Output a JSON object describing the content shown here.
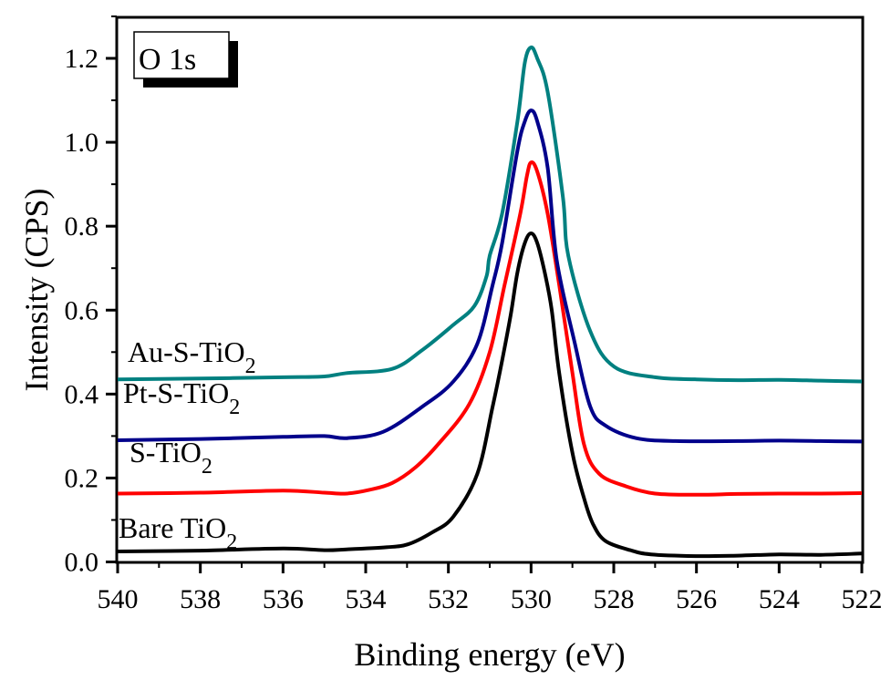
{
  "chart_data": {
    "type": "line",
    "title": "",
    "xlabel": "Binding energy (eV)",
    "ylabel": "Intensity (CPS)",
    "xlim": [
      540,
      522
    ],
    "x_reversed": true,
    "ylim": [
      0,
      1.3
    ],
    "x_ticks": [
      "540",
      "538",
      "536",
      "534",
      "532",
      "530",
      "528",
      "526",
      "524",
      "522"
    ],
    "x_tick_values": [
      540,
      538,
      536,
      534,
      532,
      530,
      528,
      526,
      524,
      522
    ],
    "y_ticks": [
      "0.0",
      "0.2",
      "0.4",
      "0.6",
      "0.8",
      "1.0",
      "1.2"
    ],
    "y_tick_values": [
      0,
      0.2,
      0.4,
      0.6,
      0.8,
      1.0,
      1.2
    ],
    "grid": false,
    "inset_label": "O 1s",
    "series": [
      {
        "name": "Bare TiO",
        "sub": "2",
        "color": "#000000",
        "points": [
          [
            540,
            0.025
          ],
          [
            538,
            0.027
          ],
          [
            536,
            0.032
          ],
          [
            535,
            0.028
          ],
          [
            534.46,
            0.03
          ],
          [
            533.5,
            0.035
          ],
          [
            532.98,
            0.042
          ],
          [
            532.4,
            0.07
          ],
          [
            531.88,
            0.108
          ],
          [
            531.3,
            0.21
          ],
          [
            530.93,
            0.37
          ],
          [
            530.7,
            0.48
          ],
          [
            530.49,
            0.59
          ],
          [
            530.33,
            0.69
          ],
          [
            530.15,
            0.76
          ],
          [
            530.0,
            0.783
          ],
          [
            529.85,
            0.76
          ],
          [
            529.67,
            0.69
          ],
          [
            529.5,
            0.6
          ],
          [
            529.32,
            0.45
          ],
          [
            529.0,
            0.26
          ],
          [
            528.72,
            0.152
          ],
          [
            528.5,
            0.09
          ],
          [
            528.2,
            0.05
          ],
          [
            527.6,
            0.028
          ],
          [
            527.1,
            0.018
          ],
          [
            526,
            0.014
          ],
          [
            525,
            0.015
          ],
          [
            524,
            0.018
          ],
          [
            523,
            0.017
          ],
          [
            522,
            0.02
          ]
        ]
      },
      {
        "name": "S-TiO",
        "sub": "2",
        "color": "#ff0000",
        "points": [
          [
            540,
            0.163
          ],
          [
            538,
            0.165
          ],
          [
            536,
            0.17
          ],
          [
            535,
            0.165
          ],
          [
            534.46,
            0.163
          ],
          [
            533.9,
            0.172
          ],
          [
            533.36,
            0.188
          ],
          [
            532.8,
            0.225
          ],
          [
            532.25,
            0.28
          ],
          [
            531.5,
            0.375
          ],
          [
            531.0,
            0.5
          ],
          [
            530.64,
            0.66
          ],
          [
            530.26,
            0.83
          ],
          [
            530.1,
            0.92
          ],
          [
            530.0,
            0.952
          ],
          [
            529.85,
            0.93
          ],
          [
            529.6,
            0.83
          ],
          [
            529.32,
            0.66
          ],
          [
            529.0,
            0.45
          ],
          [
            528.72,
            0.28
          ],
          [
            528.35,
            0.21
          ],
          [
            527.7,
            0.18
          ],
          [
            527.0,
            0.163
          ],
          [
            526,
            0.16
          ],
          [
            525,
            0.162
          ],
          [
            524,
            0.163
          ],
          [
            523,
            0.163
          ],
          [
            522,
            0.164
          ]
        ]
      },
      {
        "name": "Pt-S-TiO",
        "sub": "2",
        "color": "#00008b",
        "points": [
          [
            540,
            0.29
          ],
          [
            538,
            0.293
          ],
          [
            536,
            0.298
          ],
          [
            535,
            0.3
          ],
          [
            534.46,
            0.295
          ],
          [
            533.58,
            0.31
          ],
          [
            532.63,
            0.37
          ],
          [
            531.88,
            0.43
          ],
          [
            531.3,
            0.52
          ],
          [
            530.93,
            0.66
          ],
          [
            530.7,
            0.76
          ],
          [
            530.33,
            0.98
          ],
          [
            530.15,
            1.05
          ],
          [
            530.0,
            1.076
          ],
          [
            529.85,
            1.05
          ],
          [
            529.6,
            0.94
          ],
          [
            529.38,
            0.72
          ],
          [
            528.94,
            0.52
          ],
          [
            528.57,
            0.37
          ],
          [
            528.2,
            0.325
          ],
          [
            527.46,
            0.295
          ],
          [
            526.5,
            0.288
          ],
          [
            525,
            0.288
          ],
          [
            524,
            0.289
          ],
          [
            523,
            0.288
          ],
          [
            522,
            0.287
          ]
        ]
      },
      {
        "name": "Au-S-TiO",
        "sub": "2",
        "color": "#008080",
        "points": [
          [
            540,
            0.435
          ],
          [
            538,
            0.437
          ],
          [
            536,
            0.44
          ],
          [
            535,
            0.442
          ],
          [
            534.46,
            0.45
          ],
          [
            533.36,
            0.46
          ],
          [
            532.63,
            0.505
          ],
          [
            531.88,
            0.565
          ],
          [
            531.37,
            0.61
          ],
          [
            531.08,
            0.68
          ],
          [
            531.0,
            0.73
          ],
          [
            530.7,
            0.83
          ],
          [
            530.33,
            1.05
          ],
          [
            530.15,
            1.19
          ],
          [
            530.0,
            1.226
          ],
          [
            529.85,
            1.2
          ],
          [
            529.6,
            1.12
          ],
          [
            529.23,
            0.87
          ],
          [
            529.1,
            0.73
          ],
          [
            528.57,
            0.55
          ],
          [
            527.99,
            0.465
          ],
          [
            527.0,
            0.44
          ],
          [
            526,
            0.435
          ],
          [
            525,
            0.433
          ],
          [
            524,
            0.434
          ],
          [
            523,
            0.432
          ],
          [
            522,
            0.43
          ]
        ]
      }
    ]
  }
}
